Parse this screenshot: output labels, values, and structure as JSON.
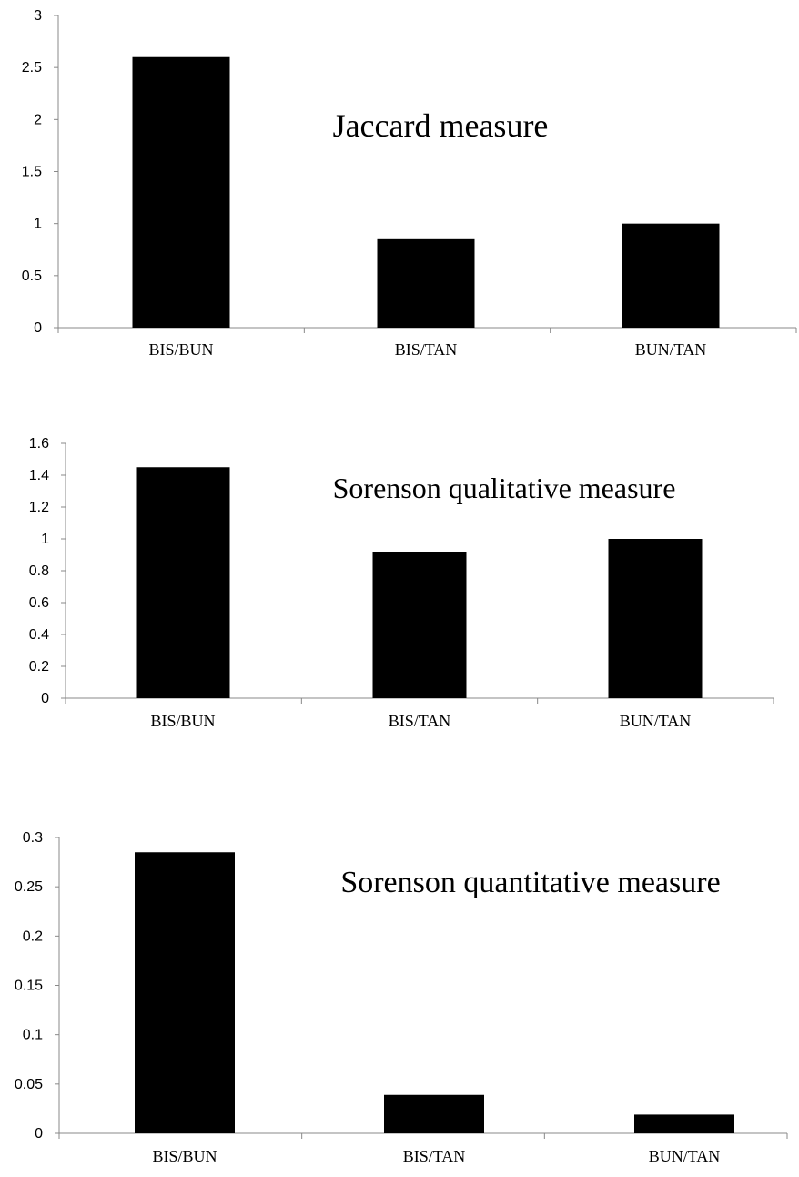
{
  "chart_data": [
    {
      "type": "bar",
      "title": "Jaccard measure",
      "categories": [
        "BIS/BUN",
        "BIS/TAN",
        "BUN/TAN"
      ],
      "values": [
        2.6,
        0.85,
        1.0
      ],
      "ylim": [
        0,
        3
      ],
      "yticks": [
        "0",
        "0.5",
        "1",
        "1.5",
        "2",
        "2.5",
        "3"
      ],
      "bar_color": "#000000",
      "grid": false,
      "legend": "none"
    },
    {
      "type": "bar",
      "title": "Sorenson qualitative measure",
      "categories": [
        "BIS/BUN",
        "BIS/TAN",
        "BUN/TAN"
      ],
      "values": [
        1.45,
        0.92,
        1.0
      ],
      "ylim": [
        0,
        1.6
      ],
      "yticks": [
        "0",
        "0.2",
        "0.4",
        "0.6",
        "0.8",
        "1",
        "1.2",
        "1.4",
        "1.6"
      ],
      "bar_color": "#000000",
      "grid": false,
      "legend": "none"
    },
    {
      "type": "bar",
      "title": "Sorenson quantitative measure",
      "categories": [
        "BIS/BUN",
        "BIS/TAN",
        "BUN/TAN"
      ],
      "values": [
        0.285,
        0.039,
        0.019
      ],
      "ylim": [
        0,
        0.3
      ],
      "yticks": [
        "0",
        "0.05",
        "0.1",
        "0.15",
        "0.2",
        "0.25",
        "0.3"
      ],
      "bar_color": "#000000",
      "grid": false,
      "legend": "none"
    }
  ]
}
